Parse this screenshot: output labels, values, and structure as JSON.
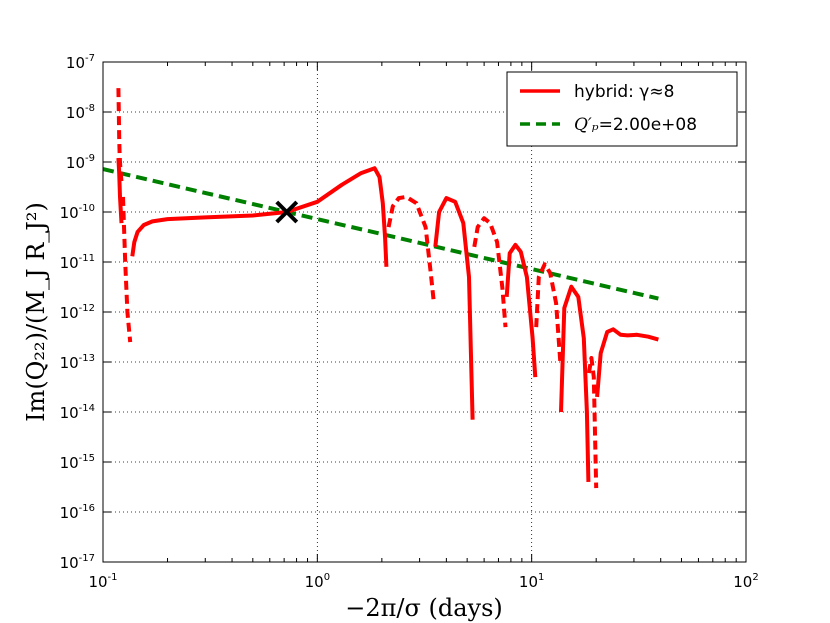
{
  "chart_data": {
    "type": "line",
    "title": "",
    "xlabel": "−2π/σ (days)",
    "ylabel": "Im(Q₂₂)/(M_J R_J²)",
    "xscale": "log",
    "yscale": "log",
    "xlim": [
      0.1,
      100
    ],
    "ylim": [
      1e-17,
      1e-07
    ],
    "grid": true,
    "legend_position": "top-right",
    "x_ticks": [
      {
        "base": "10",
        "exp": "-1"
      },
      {
        "base": "10",
        "exp": "0"
      },
      {
        "base": "10",
        "exp": "1"
      },
      {
        "base": "10",
        "exp": "2"
      }
    ],
    "y_ticks": [
      {
        "base": "10",
        "exp": "-17"
      },
      {
        "base": "10",
        "exp": "-16"
      },
      {
        "base": "10",
        "exp": "-15"
      },
      {
        "base": "10",
        "exp": "-14"
      },
      {
        "base": "10",
        "exp": "-13"
      },
      {
        "base": "10",
        "exp": "-12"
      },
      {
        "base": "10",
        "exp": "-11"
      },
      {
        "base": "10",
        "exp": "-10"
      },
      {
        "base": "10",
        "exp": "-9"
      },
      {
        "base": "10",
        "exp": "-8"
      },
      {
        "base": "10",
        "exp": "-7"
      }
    ],
    "series": [
      {
        "name": "hybrid: γ≈8",
        "color": "#ff0000",
        "style": "solid",
        "segments": [
          {
            "style": "solid",
            "x": [
              0.118,
              0.119,
              0.12,
              0.122
            ],
            "y": [
              1.2e-09,
              6e-10,
              2e-10,
              6e-11
            ]
          },
          {
            "style": "dashed",
            "x": [
              0.118,
              0.1185,
              0.119,
              0.1195,
              0.12,
              0.121,
              0.122
            ],
            "y": [
              3e-08,
              1e-08,
              3e-09,
              1.5e-09,
              1e-09,
              6e-10,
              4e-10
            ]
          },
          {
            "style": "dashed",
            "x": [
              0.124,
              0.127,
              0.13,
              0.132,
              0.134
            ],
            "y": [
              2e-10,
              1e-11,
              1e-12,
              5e-13,
              2.5e-13
            ]
          },
          {
            "style": "solid",
            "x": [
              0.137,
              0.14,
              0.145,
              0.155,
              0.17,
              0.2,
              0.3,
              0.5,
              0.72,
              1.0,
              1.3,
              1.6,
              1.85,
              1.95,
              2.02,
              2.07,
              2.1
            ],
            "y": [
              1.3e-11,
              2.5e-11,
              4e-11,
              5.5e-11,
              6.5e-11,
              7.2e-11,
              7.8e-11,
              8.5e-11,
              1e-10,
              1.6e-10,
              3.5e-10,
              6e-10,
              7.5e-10,
              5e-10,
              1.5e-10,
              3e-11,
              8e-12
            ]
          },
          {
            "style": "dashed",
            "x": [
              2.15,
              2.25,
              2.4,
              2.6,
              2.9,
              3.2,
              3.4,
              3.5
            ],
            "y": [
              5e-11,
              1.3e-10,
              1.9e-10,
              2e-10,
              1.5e-10,
              5e-11,
              5e-12,
              1.5e-12
            ]
          },
          {
            "style": "solid",
            "x": [
              3.55,
              3.7,
              4.0,
              4.4,
              4.8,
              5.1,
              5.3
            ],
            "y": [
              2e-11,
              1e-10,
              1.9e-10,
              1.6e-10,
              6e-11,
              5e-12,
              7e-15
            ]
          },
          {
            "style": "dashed",
            "x": [
              5.4,
              5.6,
              6.0,
              6.4,
              6.9,
              7.3,
              7.55
            ],
            "y": [
              2e-11,
              5e-11,
              7.5e-11,
              6e-11,
              2.5e-11,
              3e-12,
              5e-13
            ]
          },
          {
            "style": "solid",
            "x": [
              7.65,
              7.9,
              8.4,
              8.9,
              9.5,
              10.1,
              10.4
            ],
            "y": [
              2e-12,
              1.5e-11,
              2.2e-11,
              1.6e-11,
              5e-12,
              3e-13,
              5e-14
            ]
          },
          {
            "style": "dashed",
            "x": [
              10.5,
              10.8,
              11.5,
              12.2,
              13.0,
              13.6
            ],
            "y": [
              5e-13,
              5e-12,
              9e-12,
              6e-12,
              1.5e-12,
              1e-13
            ]
          },
          {
            "style": "solid",
            "x": [
              13.7,
              14.2,
              15.3,
              16.5,
              17.5,
              18.1,
              18.4
            ],
            "y": [
              1e-14,
              1.2e-12,
              3.2e-12,
              2e-12,
              3e-13,
              1e-14,
              4e-16
            ]
          },
          {
            "style": "dashed",
            "x": [
              18.5,
              19.0,
              19.5,
              19.8,
              20.0
            ],
            "y": [
              6e-14,
              1.2e-13,
              5e-14,
              2e-15,
              3e-16
            ]
          },
          {
            "style": "solid",
            "x": [
              20.2,
              21.0,
              22.5,
              24.0,
              26.0,
              28.0,
              31.0,
              35.0,
              39.0
            ],
            "y": [
              2e-14,
              1.5e-13,
              4e-13,
              4.5e-13,
              3.5e-13,
              3.4e-13,
              3.5e-13,
              3.2e-13,
              2.8e-13
            ]
          }
        ]
      },
      {
        "name": "Q'_p = 2.00e+08",
        "name_prefix": "Q′ₚ",
        "name_value": "=2.00e+08",
        "color": "#008000",
        "style": "dashed",
        "x": [
          0.1,
          39.0
        ],
        "y": [
          7.2e-10,
          1.85e-12
        ]
      }
    ],
    "markers": [
      {
        "shape": "x",
        "x": 0.72,
        "y": 1e-10,
        "color": "#000000"
      }
    ]
  }
}
